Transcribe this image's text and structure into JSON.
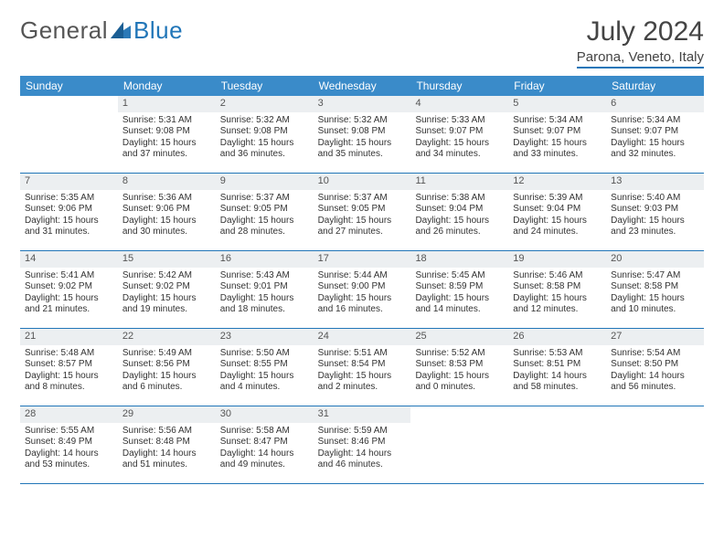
{
  "brand": {
    "part1": "General",
    "part2": "Blue"
  },
  "title": "July 2024",
  "location": "Parona, Veneto, Italy",
  "colors": {
    "accent": "#3a8bc9",
    "rule": "#2176b8",
    "daybar": "#eceff1",
    "text": "#333333"
  },
  "daysOfWeek": [
    "Sunday",
    "Monday",
    "Tuesday",
    "Wednesday",
    "Thursday",
    "Friday",
    "Saturday"
  ],
  "cells": [
    {
      "n": "",
      "e": true
    },
    {
      "n": "1",
      "sr": "Sunrise: 5:31 AM",
      "ss": "Sunset: 9:08 PM",
      "d1": "Daylight: 15 hours",
      "d2": "and 37 minutes."
    },
    {
      "n": "2",
      "sr": "Sunrise: 5:32 AM",
      "ss": "Sunset: 9:08 PM",
      "d1": "Daylight: 15 hours",
      "d2": "and 36 minutes."
    },
    {
      "n": "3",
      "sr": "Sunrise: 5:32 AM",
      "ss": "Sunset: 9:08 PM",
      "d1": "Daylight: 15 hours",
      "d2": "and 35 minutes."
    },
    {
      "n": "4",
      "sr": "Sunrise: 5:33 AM",
      "ss": "Sunset: 9:07 PM",
      "d1": "Daylight: 15 hours",
      "d2": "and 34 minutes."
    },
    {
      "n": "5",
      "sr": "Sunrise: 5:34 AM",
      "ss": "Sunset: 9:07 PM",
      "d1": "Daylight: 15 hours",
      "d2": "and 33 minutes."
    },
    {
      "n": "6",
      "sr": "Sunrise: 5:34 AM",
      "ss": "Sunset: 9:07 PM",
      "d1": "Daylight: 15 hours",
      "d2": "and 32 minutes."
    },
    {
      "n": "7",
      "sr": "Sunrise: 5:35 AM",
      "ss": "Sunset: 9:06 PM",
      "d1": "Daylight: 15 hours",
      "d2": "and 31 minutes."
    },
    {
      "n": "8",
      "sr": "Sunrise: 5:36 AM",
      "ss": "Sunset: 9:06 PM",
      "d1": "Daylight: 15 hours",
      "d2": "and 30 minutes."
    },
    {
      "n": "9",
      "sr": "Sunrise: 5:37 AM",
      "ss": "Sunset: 9:05 PM",
      "d1": "Daylight: 15 hours",
      "d2": "and 28 minutes."
    },
    {
      "n": "10",
      "sr": "Sunrise: 5:37 AM",
      "ss": "Sunset: 9:05 PM",
      "d1": "Daylight: 15 hours",
      "d2": "and 27 minutes."
    },
    {
      "n": "11",
      "sr": "Sunrise: 5:38 AM",
      "ss": "Sunset: 9:04 PM",
      "d1": "Daylight: 15 hours",
      "d2": "and 26 minutes."
    },
    {
      "n": "12",
      "sr": "Sunrise: 5:39 AM",
      "ss": "Sunset: 9:04 PM",
      "d1": "Daylight: 15 hours",
      "d2": "and 24 minutes."
    },
    {
      "n": "13",
      "sr": "Sunrise: 5:40 AM",
      "ss": "Sunset: 9:03 PM",
      "d1": "Daylight: 15 hours",
      "d2": "and 23 minutes."
    },
    {
      "n": "14",
      "sr": "Sunrise: 5:41 AM",
      "ss": "Sunset: 9:02 PM",
      "d1": "Daylight: 15 hours",
      "d2": "and 21 minutes."
    },
    {
      "n": "15",
      "sr": "Sunrise: 5:42 AM",
      "ss": "Sunset: 9:02 PM",
      "d1": "Daylight: 15 hours",
      "d2": "and 19 minutes."
    },
    {
      "n": "16",
      "sr": "Sunrise: 5:43 AM",
      "ss": "Sunset: 9:01 PM",
      "d1": "Daylight: 15 hours",
      "d2": "and 18 minutes."
    },
    {
      "n": "17",
      "sr": "Sunrise: 5:44 AM",
      "ss": "Sunset: 9:00 PM",
      "d1": "Daylight: 15 hours",
      "d2": "and 16 minutes."
    },
    {
      "n": "18",
      "sr": "Sunrise: 5:45 AM",
      "ss": "Sunset: 8:59 PM",
      "d1": "Daylight: 15 hours",
      "d2": "and 14 minutes."
    },
    {
      "n": "19",
      "sr": "Sunrise: 5:46 AM",
      "ss": "Sunset: 8:58 PM",
      "d1": "Daylight: 15 hours",
      "d2": "and 12 minutes."
    },
    {
      "n": "20",
      "sr": "Sunrise: 5:47 AM",
      "ss": "Sunset: 8:58 PM",
      "d1": "Daylight: 15 hours",
      "d2": "and 10 minutes."
    },
    {
      "n": "21",
      "sr": "Sunrise: 5:48 AM",
      "ss": "Sunset: 8:57 PM",
      "d1": "Daylight: 15 hours",
      "d2": "and 8 minutes."
    },
    {
      "n": "22",
      "sr": "Sunrise: 5:49 AM",
      "ss": "Sunset: 8:56 PM",
      "d1": "Daylight: 15 hours",
      "d2": "and 6 minutes."
    },
    {
      "n": "23",
      "sr": "Sunrise: 5:50 AM",
      "ss": "Sunset: 8:55 PM",
      "d1": "Daylight: 15 hours",
      "d2": "and 4 minutes."
    },
    {
      "n": "24",
      "sr": "Sunrise: 5:51 AM",
      "ss": "Sunset: 8:54 PM",
      "d1": "Daylight: 15 hours",
      "d2": "and 2 minutes."
    },
    {
      "n": "25",
      "sr": "Sunrise: 5:52 AM",
      "ss": "Sunset: 8:53 PM",
      "d1": "Daylight: 15 hours",
      "d2": "and 0 minutes."
    },
    {
      "n": "26",
      "sr": "Sunrise: 5:53 AM",
      "ss": "Sunset: 8:51 PM",
      "d1": "Daylight: 14 hours",
      "d2": "and 58 minutes."
    },
    {
      "n": "27",
      "sr": "Sunrise: 5:54 AM",
      "ss": "Sunset: 8:50 PM",
      "d1": "Daylight: 14 hours",
      "d2": "and 56 minutes."
    },
    {
      "n": "28",
      "sr": "Sunrise: 5:55 AM",
      "ss": "Sunset: 8:49 PM",
      "d1": "Daylight: 14 hours",
      "d2": "and 53 minutes."
    },
    {
      "n": "29",
      "sr": "Sunrise: 5:56 AM",
      "ss": "Sunset: 8:48 PM",
      "d1": "Daylight: 14 hours",
      "d2": "and 51 minutes."
    },
    {
      "n": "30",
      "sr": "Sunrise: 5:58 AM",
      "ss": "Sunset: 8:47 PM",
      "d1": "Daylight: 14 hours",
      "d2": "and 49 minutes."
    },
    {
      "n": "31",
      "sr": "Sunrise: 5:59 AM",
      "ss": "Sunset: 8:46 PM",
      "d1": "Daylight: 14 hours",
      "d2": "and 46 minutes."
    },
    {
      "n": "",
      "e": true
    },
    {
      "n": "",
      "e": true
    },
    {
      "n": "",
      "e": true
    }
  ]
}
